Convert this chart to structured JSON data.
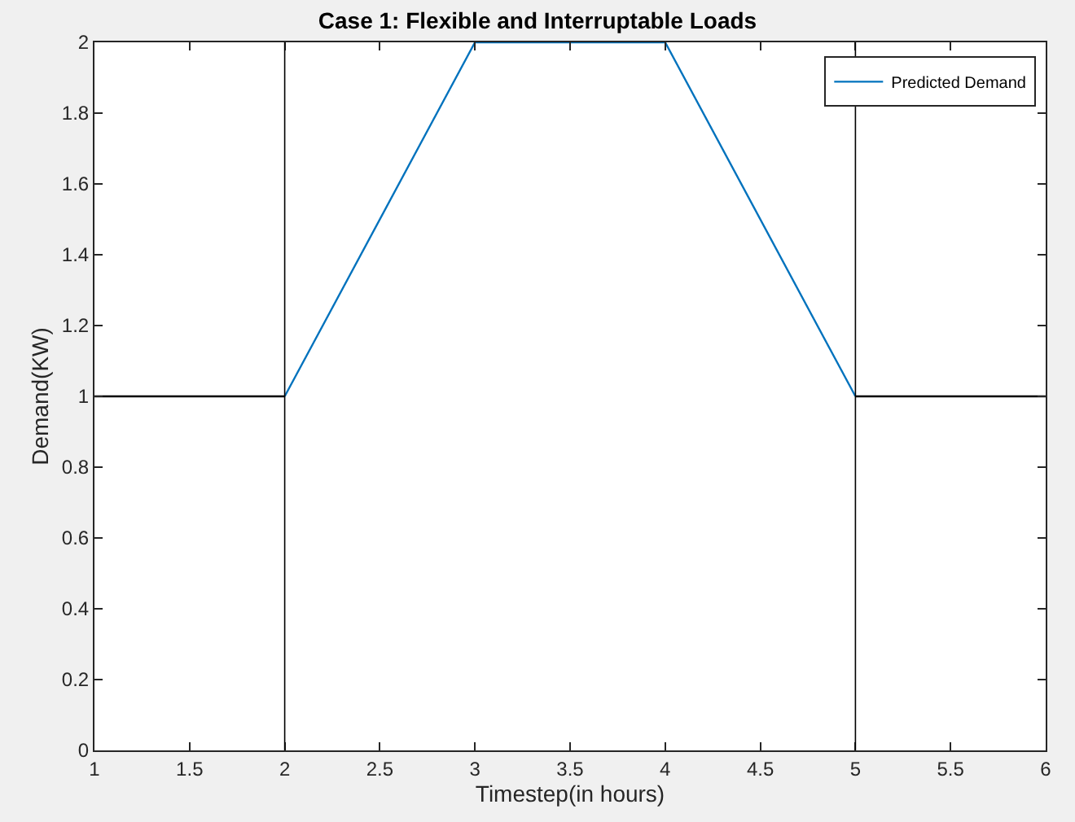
{
  "chart_data": {
    "type": "line",
    "title": "Case 1: Flexible and Interruptable Loads",
    "xlabel": "Timestep(in hours)",
    "ylabel": "Demand(KW)",
    "x": [
      1,
      2,
      3,
      4,
      5,
      6
    ],
    "series": [
      {
        "name": "Predicted Demand",
        "color": "#0072bd",
        "values": [
          null,
          1,
          2,
          2,
          1,
          null
        ]
      },
      {
        "color": "#000000",
        "values": [
          1,
          1,
          null,
          null,
          1,
          1
        ]
      }
    ],
    "ref_lines": [
      {
        "axis": "x",
        "value": 2,
        "color": "#000000"
      },
      {
        "axis": "x",
        "value": 5,
        "color": "#000000"
      }
    ],
    "xlim": [
      1,
      6
    ],
    "xticks": [
      1,
      1.5,
      2,
      2.5,
      3,
      3.5,
      4,
      4.5,
      5,
      5.5,
      6
    ],
    "ylim": [
      0,
      2
    ],
    "yticks": [
      0,
      0.2,
      0.4,
      0.6,
      0.8,
      1,
      1.2,
      1.4,
      1.6,
      1.8,
      2
    ],
    "legend": "top right",
    "marker": "none",
    "line_style": "solid"
  }
}
